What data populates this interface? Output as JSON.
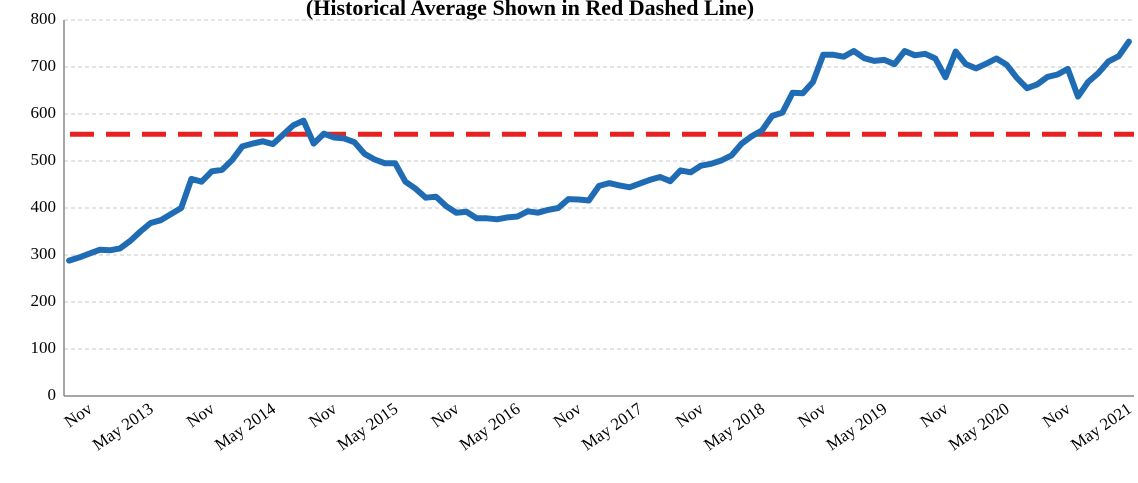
{
  "chart_data": {
    "type": "line",
    "title": "(Historical Average Shown in Red Dashed Line)",
    "categories": [
      "Nov",
      null,
      null,
      null,
      null,
      null,
      "May 2013",
      null,
      null,
      null,
      null,
      null,
      "Nov",
      null,
      null,
      null,
      null,
      null,
      "May 2014",
      null,
      null,
      null,
      null,
      null,
      "Nov",
      null,
      null,
      null,
      null,
      null,
      "May 2015",
      null,
      null,
      null,
      null,
      null,
      "Nov",
      null,
      null,
      null,
      null,
      null,
      "May 2016",
      null,
      null,
      null,
      null,
      null,
      "Nov",
      null,
      null,
      null,
      null,
      null,
      "May 2017",
      null,
      null,
      null,
      null,
      null,
      "Nov",
      null,
      null,
      null,
      null,
      null,
      "May 2018",
      null,
      null,
      null,
      null,
      null,
      "Nov",
      null,
      null,
      null,
      null,
      null,
      "May 2019",
      null,
      null,
      null,
      null,
      null,
      "Nov",
      null,
      null,
      null,
      null,
      null,
      "May 2020",
      null,
      null,
      null,
      null,
      null,
      "Nov",
      null,
      null,
      null,
      null,
      null,
      "May 2021",
      null,
      null
    ],
    "series": [
      {
        "color": "#1f6cb4",
        "values": [
          288,
          295,
          303,
          311,
          310,
          314,
          330,
          350,
          368,
          374,
          387,
          400,
          462,
          456,
          478,
          481,
          502,
          531,
          537,
          542,
          536,
          556,
          576,
          586,
          537,
          558,
          550,
          548,
          540,
          515,
          503,
          495,
          495,
          456,
          441,
          422,
          424,
          404,
          390,
          392,
          378,
          378,
          376,
          380,
          382,
          393,
          390,
          396,
          400,
          419,
          418,
          416,
          447,
          453,
          448,
          444,
          452,
          460,
          466,
          457,
          480,
          476,
          490,
          494,
          501,
          512,
          537,
          553,
          565,
          596,
          603,
          645,
          644,
          668,
          726,
          726,
          722,
          734,
          719,
          713,
          715,
          706,
          734,
          725,
          728,
          718,
          678,
          733,
          706,
          697,
          707,
          718,
          705,
          677,
          655,
          663,
          679,
          684,
          696,
          637,
          668,
          687,
          712,
          723,
          754
        ]
      }
    ],
    "reference_line": {
      "value": 557,
      "color": "#e8201f"
    },
    "ylim": [
      0,
      800
    ],
    "yticks": [
      0,
      100,
      200,
      300,
      400,
      500,
      600,
      700,
      800
    ],
    "grid": true
  }
}
